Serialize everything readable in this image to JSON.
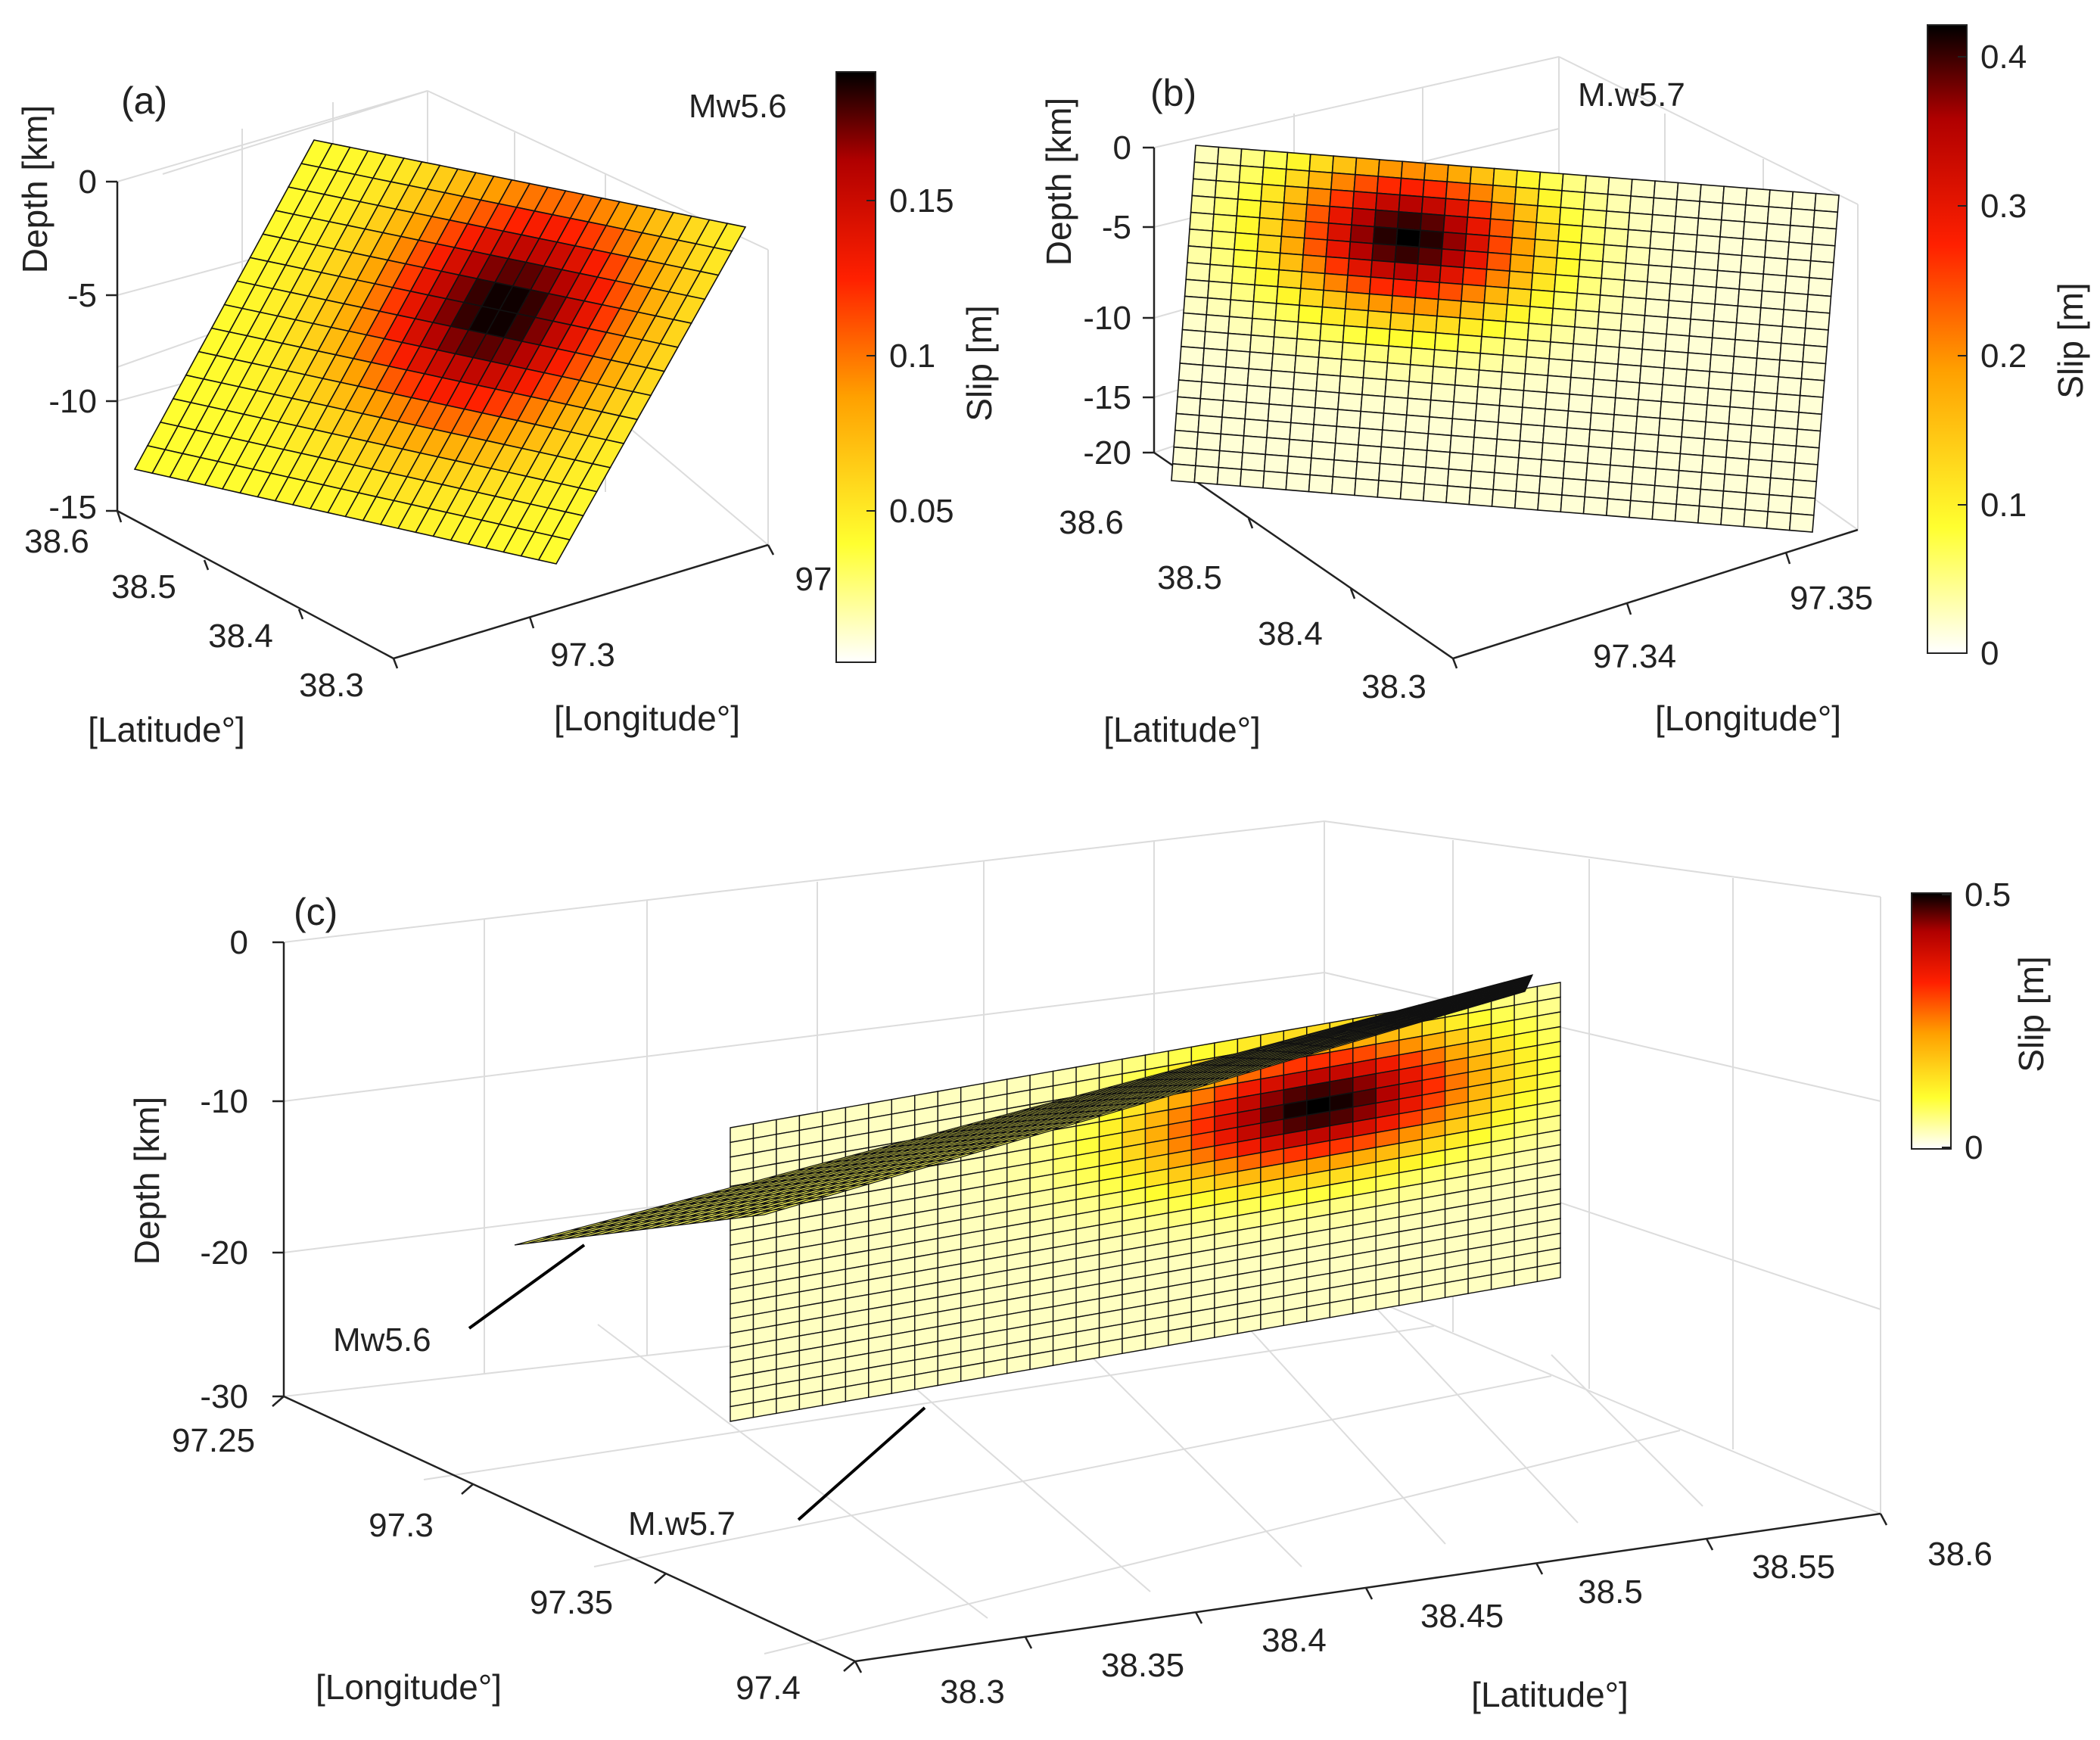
{
  "figure": {
    "colormap": [
      "#ffffff",
      "#ffff30",
      "#ffa000",
      "#ff2000",
      "#b00000",
      "#000000"
    ],
    "grid_color": "#dcdcdc",
    "axis_color": "#222222"
  },
  "chart_data": [
    {
      "panel": "(a)",
      "type": "surface3d",
      "event": "Mw5.6",
      "zlabel": "Depth [km]",
      "xlabel": "[Latitude°]",
      "ylabel": "[Longitude°]",
      "z_ticks": [
        "0",
        "-5",
        "-10",
        "-15"
      ],
      "lat_ticks": [
        "38.6",
        "38.5",
        "38.4",
        "38.3"
      ],
      "lon_ticks": [
        "97.3",
        "97"
      ],
      "colorbar": {
        "label": "Slip [m]",
        "min": 0,
        "max": 0.19,
        "ticks": [
          "0.15",
          "0.1",
          "0.05"
        ]
      },
      "grid": {
        "along_strike": 24,
        "down_dip": 14
      },
      "max_slip_m": 0.19,
      "peak_cell": {
        "along_strike": 14,
        "down_dip": 5
      },
      "spread": {
        "along_strike": 4.8,
        "down_dip": 3.4
      }
    },
    {
      "panel": "(b)",
      "type": "surface3d",
      "event": "M.w5.7",
      "zlabel": "Depth [km]",
      "xlabel": "[Latitude°]",
      "ylabel": "[Longitude°]",
      "z_ticks": [
        "0",
        "-5",
        "-10",
        "-15",
        "-20"
      ],
      "lat_ticks": [
        "38.6",
        "38.5",
        "38.4",
        "38.3"
      ],
      "lon_ticks": [
        "97.34",
        "97.35"
      ],
      "colorbar": {
        "label": "Slip [m]",
        "min": 0,
        "max": 0.42,
        "ticks": [
          "0.4",
          "0.3",
          "0.2",
          "0.1",
          "0"
        ]
      },
      "grid": {
        "along_strike": 28,
        "down_dip": 20
      },
      "max_slip_m": 0.42,
      "peak_cell": {
        "along_strike": 9.5,
        "down_dip": 4.5
      },
      "spread": {
        "along_strike": 3.8,
        "down_dip": 3.2
      }
    },
    {
      "panel": "(c)",
      "type": "surface3d",
      "events": [
        "Mw5.6",
        "M.w5.7"
      ],
      "zlabel": "Depth [km]",
      "xlabel": "[Latitude°]",
      "ylabel": "[Longitude°]",
      "z_ticks": [
        "0",
        "-10",
        "-20",
        "-30"
      ],
      "lon_ticks": [
        "97.25",
        "97.3",
        "97.35",
        "97.4"
      ],
      "lat_ticks": [
        "38.3",
        "38.35",
        "38.4",
        "38.45",
        "38.5",
        "38.55",
        "38.6"
      ],
      "colorbar": {
        "label": "Slip [m]",
        "min": 0,
        "max": 0.5,
        "ticks": [
          "0.5",
          "0"
        ]
      },
      "grid": {
        "along_strike": 36,
        "down_dip": 20
      },
      "max_slip_m": 0.5,
      "peak_cell": {
        "along_strike": 25.5,
        "down_dip": 5.5
      },
      "spread": {
        "along_strike": 5.0,
        "down_dip": 3.0
      }
    }
  ]
}
